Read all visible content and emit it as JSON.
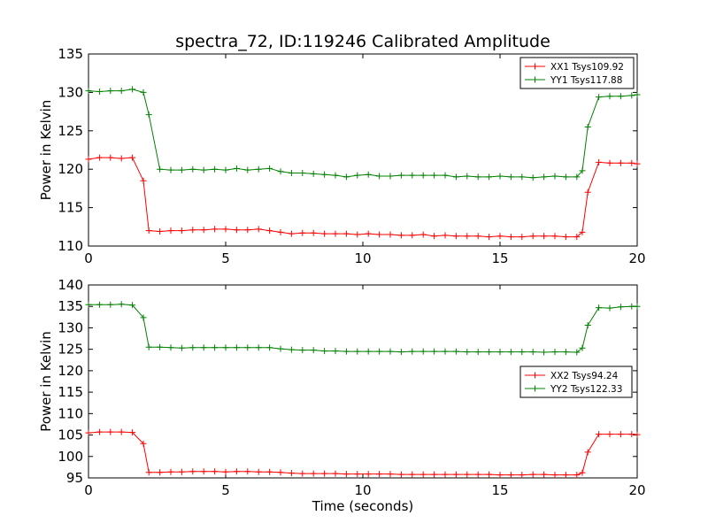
{
  "title": "spectra_72, ID:119246 Calibrated Amplitude",
  "colors": {
    "XX": "#ff0000",
    "YY": "#008000"
  },
  "chart_data": [
    {
      "type": "line",
      "title": "spectra_72, ID:119246 Calibrated Amplitude",
      "xlabel": "",
      "ylabel": "Power in Kelvin",
      "xlim": [
        0,
        20
      ],
      "ylim": [
        110,
        135
      ],
      "xticks": [
        "0",
        "5",
        "10",
        "15",
        "20"
      ],
      "yticks": [
        "110",
        "115",
        "120",
        "125",
        "130",
        "135"
      ],
      "grid": false,
      "legend_position": "top-right",
      "x": [
        0.0,
        0.4,
        0.8,
        1.2,
        1.6,
        2.0,
        2.2,
        2.6,
        3.0,
        3.4,
        3.8,
        4.2,
        4.6,
        5.0,
        5.4,
        5.8,
        6.2,
        6.6,
        7.0,
        7.4,
        7.8,
        8.2,
        8.6,
        9.0,
        9.4,
        9.8,
        10.2,
        10.6,
        11.0,
        11.4,
        11.8,
        12.2,
        12.6,
        13.0,
        13.4,
        13.8,
        14.2,
        14.6,
        15.0,
        15.4,
        15.8,
        16.2,
        16.6,
        17.0,
        17.4,
        17.8,
        18.0,
        18.2,
        18.6,
        19.0,
        19.4,
        19.8,
        20.0
      ],
      "series": [
        {
          "name": "XX1 Tsys109.92",
          "color": "#ff0000",
          "values": [
            121.3,
            121.5,
            121.5,
            121.4,
            121.5,
            118.5,
            112.0,
            111.9,
            112.0,
            112.0,
            112.1,
            112.1,
            112.2,
            112.2,
            112.1,
            112.1,
            112.2,
            112.0,
            111.8,
            111.6,
            111.7,
            111.7,
            111.6,
            111.6,
            111.6,
            111.5,
            111.6,
            111.5,
            111.5,
            111.4,
            111.4,
            111.5,
            111.3,
            111.4,
            111.3,
            111.3,
            111.3,
            111.2,
            111.3,
            111.2,
            111.2,
            111.3,
            111.3,
            111.3,
            111.2,
            111.2,
            111.8,
            117.0,
            120.9,
            120.8,
            120.8,
            120.8,
            120.7
          ]
        },
        {
          "name": "YY1 Tsys117.88",
          "color": "#008000",
          "values": [
            130.2,
            130.1,
            130.2,
            130.2,
            130.4,
            130.0,
            127.1,
            120.0,
            119.9,
            119.9,
            120.0,
            119.9,
            120.0,
            119.9,
            120.1,
            119.9,
            120.0,
            120.1,
            119.7,
            119.5,
            119.5,
            119.4,
            119.3,
            119.2,
            119.0,
            119.2,
            119.3,
            119.1,
            119.1,
            119.2,
            119.2,
            119.2,
            119.2,
            119.2,
            119.0,
            119.1,
            119.0,
            119.0,
            119.1,
            119.0,
            119.0,
            118.9,
            119.0,
            119.1,
            119.0,
            119.0,
            119.8,
            125.5,
            129.4,
            129.5,
            129.5,
            129.6,
            129.7
          ]
        }
      ]
    },
    {
      "type": "line",
      "title": "",
      "xlabel": "Time (seconds)",
      "ylabel": "Power in Kelvin",
      "xlim": [
        0,
        20
      ],
      "ylim": [
        95,
        140
      ],
      "xticks": [
        "0",
        "5",
        "10",
        "15",
        "20"
      ],
      "yticks": [
        "95",
        "100",
        "105",
        "110",
        "115",
        "120",
        "125",
        "130",
        "135",
        "140"
      ],
      "grid": false,
      "legend_position": "center-right",
      "x": [
        0.0,
        0.4,
        0.8,
        1.2,
        1.6,
        2.0,
        2.2,
        2.6,
        3.0,
        3.4,
        3.8,
        4.2,
        4.6,
        5.0,
        5.4,
        5.8,
        6.2,
        6.6,
        7.0,
        7.4,
        7.8,
        8.2,
        8.6,
        9.0,
        9.4,
        9.8,
        10.2,
        10.6,
        11.0,
        11.4,
        11.8,
        12.2,
        12.6,
        13.0,
        13.4,
        13.8,
        14.2,
        14.6,
        15.0,
        15.4,
        15.8,
        16.2,
        16.6,
        17.0,
        17.4,
        17.8,
        18.0,
        18.2,
        18.6,
        19.0,
        19.4,
        19.8,
        20.0
      ],
      "series": [
        {
          "name": "XX2 Tsys94.24",
          "color": "#ff0000",
          "values": [
            105.5,
            105.7,
            105.7,
            105.7,
            105.6,
            103.0,
            96.3,
            96.3,
            96.4,
            96.4,
            96.5,
            96.5,
            96.5,
            96.4,
            96.5,
            96.5,
            96.4,
            96.4,
            96.3,
            96.1,
            96.0,
            96.0,
            96.0,
            96.0,
            95.9,
            95.9,
            95.9,
            95.9,
            95.9,
            95.8,
            95.8,
            95.8,
            95.8,
            95.8,
            95.8,
            95.8,
            95.8,
            95.8,
            95.7,
            95.7,
            95.7,
            95.8,
            95.8,
            95.7,
            95.7,
            95.7,
            96.2,
            101.0,
            105.2,
            105.2,
            105.2,
            105.2,
            105.1
          ]
        },
        {
          "name": "YY2 Tsys122.33",
          "color": "#008000",
          "values": [
            135.4,
            135.4,
            135.4,
            135.5,
            135.3,
            132.4,
            125.5,
            125.5,
            125.4,
            125.3,
            125.4,
            125.4,
            125.4,
            125.4,
            125.4,
            125.4,
            125.4,
            125.4,
            125.1,
            124.9,
            124.8,
            124.8,
            124.6,
            124.6,
            124.5,
            124.5,
            124.5,
            124.5,
            124.5,
            124.4,
            124.5,
            124.5,
            124.5,
            124.5,
            124.5,
            124.4,
            124.4,
            124.4,
            124.4,
            124.4,
            124.4,
            124.4,
            124.3,
            124.4,
            124.4,
            124.3,
            125.3,
            130.6,
            134.7,
            134.6,
            134.9,
            135.0,
            135.0
          ]
        }
      ]
    }
  ]
}
